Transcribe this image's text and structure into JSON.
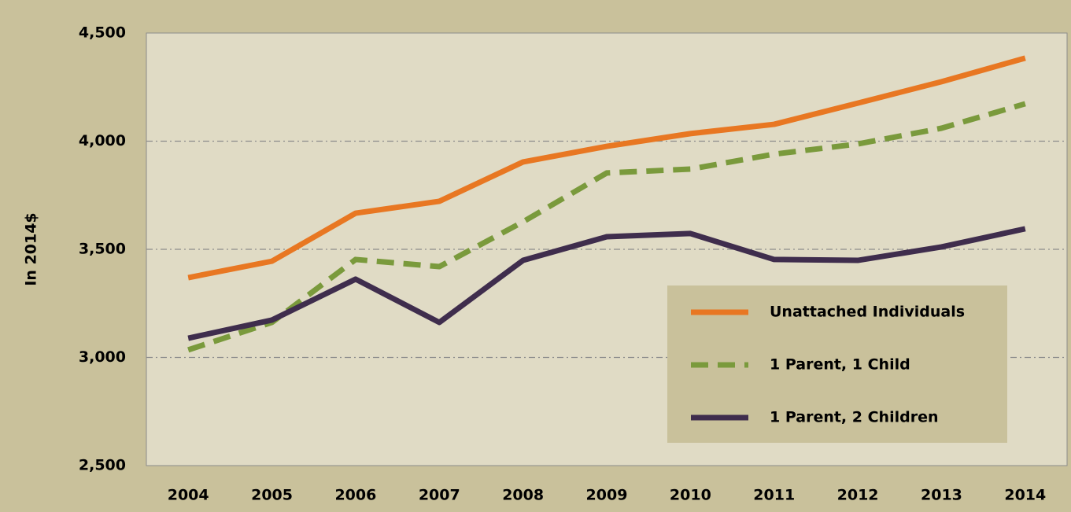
{
  "chart_data": {
    "type": "line",
    "y_label": "In 2014$",
    "categories": [
      "2004",
      "2005",
      "2006",
      "2007",
      "2008",
      "2009",
      "2010",
      "2011",
      "2012",
      "2013",
      "2014"
    ],
    "series": [
      {
        "name": "Unattached Individuals",
        "color": "#e87722",
        "style": "solid",
        "values": [
          3369,
          3445,
          3667,
          3722,
          3904,
          3976,
          4035,
          4078,
          4176,
          4275,
          4384
        ]
      },
      {
        "name": "1 Parent, 1 Child",
        "color": "#7a9a3c",
        "style": "dashed",
        "values": [
          3035,
          3162,
          3453,
          3420,
          3627,
          3853,
          3871,
          3940,
          3987,
          4060,
          4173
        ]
      },
      {
        "name": "1 Parent, 2 Children",
        "color": "#3f2d4d",
        "style": "solid",
        "values": [
          3089,
          3173,
          3362,
          3162,
          3449,
          3558,
          3573,
          3453,
          3449,
          3511,
          3595
        ]
      }
    ],
    "ylim": [
      2500,
      4500
    ],
    "yticks": [
      {
        "value": 2500,
        "label": "2,500"
      },
      {
        "value": 3000,
        "label": "3,000"
      },
      {
        "value": 3500,
        "label": "3,500"
      },
      {
        "value": 4000,
        "label": "4,000"
      },
      {
        "value": 4500,
        "label": "4,500"
      }
    ],
    "grid": true,
    "legend": "lower right"
  }
}
